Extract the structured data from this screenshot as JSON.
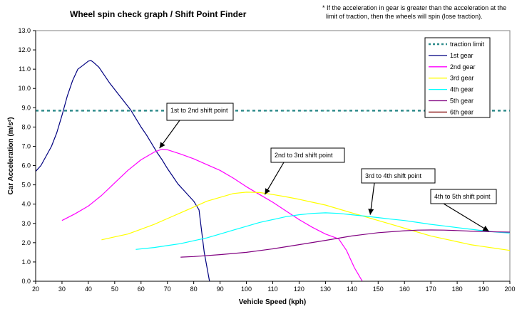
{
  "chart_data": {
    "type": "line",
    "title": "Wheel spin check graph / Shift Point Finder",
    "note": [
      "* If the acceleration in gear is greater than the acceleration at the",
      "limit of traction, then the wheels will spin (lose traction)."
    ],
    "xlabel": "Vehicle Speed (kph)",
    "ylabel": "Car Acceleration (m/s²)",
    "xlim": [
      20,
      200
    ],
    "ylim": [
      0,
      13
    ],
    "xticks": [
      "20",
      "30",
      "40",
      "50",
      "60",
      "70",
      "80",
      "90",
      "100",
      "110",
      "120",
      "130",
      "140",
      "150",
      "160",
      "170",
      "180",
      "190",
      "200"
    ],
    "yticks": [
      "0.0",
      "1.0",
      "2.0",
      "3.0",
      "4.0",
      "5.0",
      "6.0",
      "7.0",
      "8.0",
      "9.0",
      "10.0",
      "11.0",
      "12.0",
      "13.0"
    ],
    "grid": false,
    "legend_position": "top-right",
    "traction_limit": {
      "name": "traction limit",
      "value": 8.85,
      "color": "#2e8b8b"
    },
    "series": [
      {
        "name": "1st gear",
        "color": "#000080",
        "x": [
          20,
          22,
          24,
          26,
          28,
          30,
          32,
          34,
          36,
          38,
          40,
          41,
          42,
          44,
          46,
          48,
          50,
          52,
          54,
          56,
          58,
          60,
          62,
          64,
          66,
          68,
          70,
          72,
          74,
          76,
          78,
          80,
          82,
          84,
          86
        ],
        "y": [
          5.7,
          6.0,
          6.5,
          7.0,
          7.7,
          8.6,
          9.6,
          10.4,
          11.0,
          11.2,
          11.42,
          11.45,
          11.35,
          11.1,
          10.7,
          10.3,
          9.95,
          9.6,
          9.25,
          8.9,
          8.45,
          8.0,
          7.6,
          7.15,
          6.7,
          6.3,
          5.85,
          5.45,
          5.05,
          4.75,
          4.45,
          4.15,
          3.7,
          1.5,
          0.0
        ]
      },
      {
        "name": "2nd gear",
        "color": "#ff00ff",
        "x": [
          30,
          35,
          40,
          45,
          50,
          55,
          60,
          65,
          68,
          70,
          75,
          80,
          85,
          90,
          95,
          100,
          105,
          110,
          115,
          120,
          125,
          130,
          135,
          138,
          141,
          144
        ],
        "y": [
          3.15,
          3.5,
          3.9,
          4.45,
          5.1,
          5.75,
          6.3,
          6.7,
          6.85,
          6.82,
          6.6,
          6.35,
          6.05,
          5.75,
          5.35,
          4.9,
          4.5,
          4.1,
          3.65,
          3.2,
          2.8,
          2.45,
          2.2,
          1.6,
          0.7,
          0.0
        ]
      },
      {
        "name": "3rd gear",
        "color": "#ffff00",
        "x": [
          45,
          50,
          55,
          60,
          65,
          70,
          75,
          80,
          85,
          90,
          95,
          100,
          105,
          110,
          115,
          120,
          125,
          130,
          135,
          140,
          145,
          150,
          155,
          160,
          165,
          170,
          175,
          180,
          185,
          190,
          195,
          200
        ],
        "y": [
          2.15,
          2.3,
          2.45,
          2.7,
          2.95,
          3.25,
          3.55,
          3.85,
          4.15,
          4.35,
          4.55,
          4.62,
          4.6,
          4.5,
          4.38,
          4.25,
          4.1,
          3.95,
          3.75,
          3.55,
          3.35,
          3.15,
          2.95,
          2.75,
          2.55,
          2.35,
          2.2,
          2.05,
          1.9,
          1.8,
          1.7,
          1.6
        ]
      },
      {
        "name": "4th gear",
        "color": "#00ffff",
        "x": [
          58,
          65,
          70,
          75,
          80,
          85,
          90,
          95,
          100,
          105,
          110,
          115,
          120,
          125,
          130,
          135,
          140,
          145,
          150,
          155,
          160,
          165,
          170,
          175,
          180,
          185,
          190,
          195,
          200
        ],
        "y": [
          1.65,
          1.75,
          1.85,
          1.95,
          2.1,
          2.25,
          2.45,
          2.65,
          2.85,
          3.05,
          3.2,
          3.35,
          3.45,
          3.52,
          3.55,
          3.52,
          3.45,
          3.38,
          3.3,
          3.22,
          3.15,
          3.05,
          2.95,
          2.87,
          2.78,
          2.7,
          2.62,
          2.55,
          2.5
        ]
      },
      {
        "name": "5th gear",
        "color": "#800080",
        "x": [
          75,
          80,
          90,
          100,
          110,
          120,
          130,
          140,
          150,
          160,
          165,
          170,
          175,
          180,
          185,
          190,
          195,
          200
        ],
        "y": [
          1.25,
          1.28,
          1.38,
          1.5,
          1.68,
          1.9,
          2.12,
          2.35,
          2.52,
          2.62,
          2.65,
          2.66,
          2.65,
          2.63,
          2.6,
          2.58,
          2.56,
          2.55
        ]
      },
      {
        "name": "6th gear",
        "color": "#800000",
        "x": [],
        "y": []
      }
    ],
    "annotations": [
      {
        "label": "1st to 2nd shift point",
        "x": 67,
        "y": 6.9
      },
      {
        "label": "2nd to 3rd shift point",
        "x": 107,
        "y": 4.5
      },
      {
        "label": "3rd to 4th shift point",
        "x": 147,
        "y": 3.45
      },
      {
        "label": "4th to 5th shift point",
        "x": 192,
        "y": 2.6
      }
    ]
  }
}
